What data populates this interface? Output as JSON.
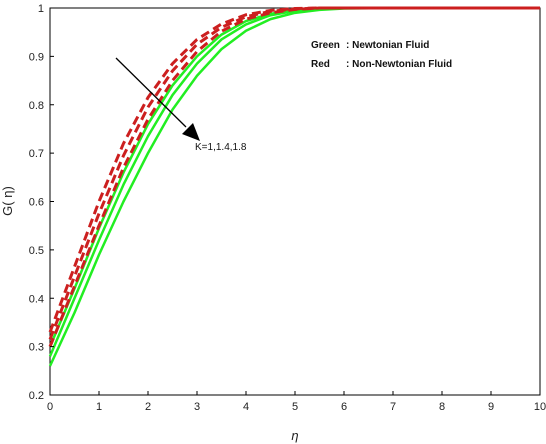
{
  "chart_data": {
    "type": "line",
    "xlabel": "η",
    "ylabel": "G( η)",
    "xlim": [
      0,
      10
    ],
    "ylim": [
      0.2,
      1.0
    ],
    "xticks": [
      0,
      1,
      2,
      3,
      4,
      5,
      6,
      7,
      8,
      9,
      10
    ],
    "yticks": [
      "0.2",
      "0.3",
      "0.4",
      "0.5",
      "0.6",
      "0.7",
      "0.8",
      "0.9",
      "1"
    ],
    "grid": false,
    "legend": {
      "placement": "top-right",
      "entries": [
        {
          "label": "Green",
          "desc": ": Newtonian Fluid"
        },
        {
          "label": "Red",
          "desc": ": Non-Newtonian Fluid"
        }
      ]
    },
    "annotation": {
      "text": "K=1,1.4,1.8"
    },
    "colors": {
      "newtonian": "#22ee22",
      "non_newtonian": "#cc1f1f"
    },
    "series": [
      {
        "group": "newtonian",
        "style": "solid",
        "x": [
          0,
          0.5,
          1,
          1.5,
          2,
          2.5,
          3,
          3.5,
          4,
          4.5,
          5,
          5.5,
          6,
          7,
          8,
          9,
          10
        ],
        "y": [
          0.26,
          0.37,
          0.49,
          0.6,
          0.7,
          0.79,
          0.86,
          0.915,
          0.953,
          0.977,
          0.99,
          0.996,
          0.999,
          1.0,
          1.0,
          1.0,
          1.0
        ]
      },
      {
        "group": "newtonian",
        "style": "solid",
        "x": [
          0,
          0.5,
          1,
          1.5,
          2,
          2.5,
          3,
          3.5,
          4,
          4.5,
          5,
          5.5,
          6,
          7,
          8,
          9,
          10
        ],
        "y": [
          0.28,
          0.4,
          0.52,
          0.635,
          0.735,
          0.82,
          0.885,
          0.935,
          0.966,
          0.985,
          0.994,
          0.998,
          1.0,
          1.0,
          1.0,
          1.0,
          1.0
        ]
      },
      {
        "group": "newtonian",
        "style": "solid",
        "x": [
          0,
          0.5,
          1,
          1.5,
          2,
          2.5,
          3,
          3.5,
          4,
          4.5,
          5,
          5.5,
          6,
          7,
          8,
          9,
          10
        ],
        "y": [
          0.3,
          0.42,
          0.545,
          0.66,
          0.76,
          0.84,
          0.9,
          0.945,
          0.973,
          0.988,
          0.996,
          0.999,
          1.0,
          1.0,
          1.0,
          1.0,
          1.0
        ]
      },
      {
        "group": "non_newtonian",
        "style": "dashed",
        "x": [
          0,
          0.5,
          1,
          1.5,
          2,
          2.5,
          3,
          3.5,
          4,
          4.5,
          5,
          5.5,
          6,
          7,
          8,
          9,
          10
        ],
        "y": [
          0.3,
          0.425,
          0.55,
          0.67,
          0.77,
          0.85,
          0.91,
          0.952,
          0.977,
          0.99,
          0.997,
          1.0,
          1.0,
          1.0,
          1.0,
          1.0,
          1.0
        ]
      },
      {
        "group": "non_newtonian",
        "style": "dashed",
        "x": [
          0,
          0.5,
          1,
          1.5,
          2,
          2.5,
          3,
          3.5,
          4,
          4.5,
          5,
          5.5,
          6,
          7,
          8,
          9,
          10
        ],
        "y": [
          0.315,
          0.445,
          0.575,
          0.695,
          0.795,
          0.87,
          0.925,
          0.96,
          0.982,
          0.993,
          0.998,
          1.0,
          1.0,
          1.0,
          1.0,
          1.0,
          1.0
        ]
      },
      {
        "group": "non_newtonian",
        "style": "dashed",
        "x": [
          0,
          0.5,
          1,
          1.5,
          2,
          2.5,
          3,
          3.5,
          4,
          4.5,
          5,
          5.5,
          6,
          7,
          8,
          9,
          10
        ],
        "y": [
          0.33,
          0.465,
          0.6,
          0.72,
          0.815,
          0.885,
          0.935,
          0.967,
          0.986,
          0.995,
          0.999,
          1.0,
          1.0,
          1.0,
          1.0,
          1.0,
          1.0
        ]
      }
    ]
  }
}
